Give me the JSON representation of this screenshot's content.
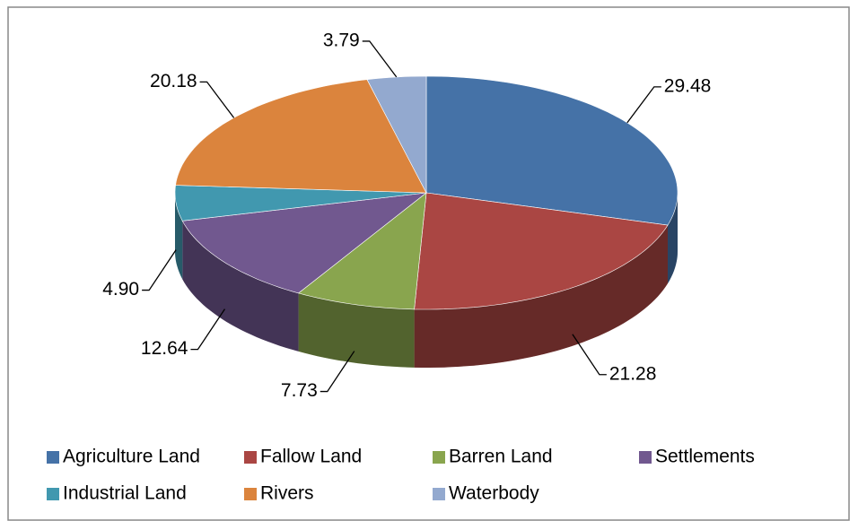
{
  "chart_data": {
    "type": "pie",
    "categories": [
      "Agriculture Land",
      "Fallow Land",
      "Barren Land",
      "Settlements",
      "Industrial Land",
      "Rivers",
      "Waterbody"
    ],
    "values": [
      29.48,
      21.28,
      7.73,
      12.64,
      4.9,
      20.18,
      3.79
    ],
    "value_labels": [
      "29.48",
      "21.28",
      "7.73",
      "12.64",
      "4.90",
      "20.18",
      "3.79"
    ],
    "colors": [
      "#4572a7",
      "#aa4643",
      "#89a54e",
      "#71588f",
      "#4198af",
      "#db843d",
      "#93a9cf"
    ],
    "legend": "bottom"
  }
}
